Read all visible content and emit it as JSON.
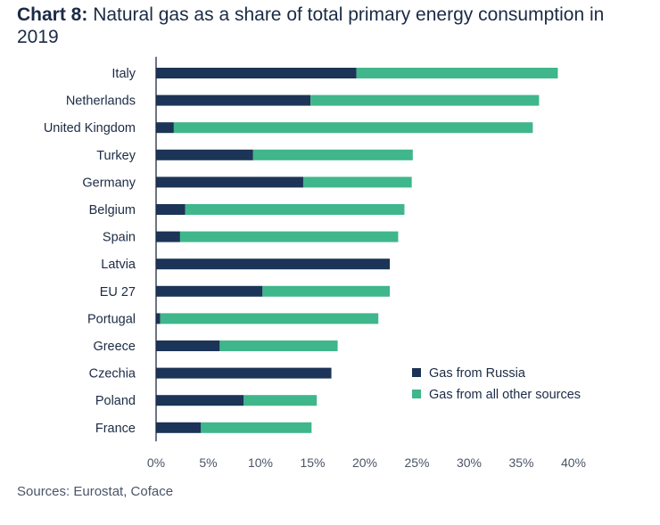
{
  "title": {
    "prefix": "Chart 8:",
    "text": "Natural gas as a share of total primary energy consumption in 2019"
  },
  "source": "Sources: Eurostat, Coface",
  "colors": {
    "russia": "#1b3457",
    "other": "#3fb68b",
    "axis": "#1b2b45"
  },
  "chart_data": {
    "type": "bar",
    "orientation": "horizontal",
    "stacked": true,
    "categories": [
      "Italy",
      "Netherlands",
      "United Kingdom",
      "Turkey",
      "Germany",
      "Belgium",
      "Spain",
      "Latvia",
      "EU 27",
      "Portugal",
      "Greece",
      "Czechia",
      "Poland",
      "France"
    ],
    "series": [
      {
        "name": "Gas from Russia",
        "values": [
          19.2,
          14.8,
          1.7,
          9.3,
          14.1,
          2.8,
          2.3,
          22.4,
          10.2,
          0.4,
          6.1,
          16.8,
          8.4,
          4.3
        ]
      },
      {
        "name": "Gas from all other sources",
        "values": [
          19.3,
          21.9,
          34.4,
          15.3,
          10.4,
          21.0,
          20.9,
          0.0,
          12.2,
          20.9,
          11.3,
          0.0,
          7.0,
          10.6
        ]
      }
    ],
    "xlim": [
      0,
      40
    ],
    "xticks": [
      "0%",
      "5%",
      "10%",
      "15%",
      "20%",
      "25%",
      "30%",
      "35%",
      "40%"
    ],
    "xtick_values": [
      0,
      5,
      10,
      15,
      20,
      25,
      30,
      35,
      40
    ],
    "grid": false,
    "legend_position": "bottom-right"
  }
}
